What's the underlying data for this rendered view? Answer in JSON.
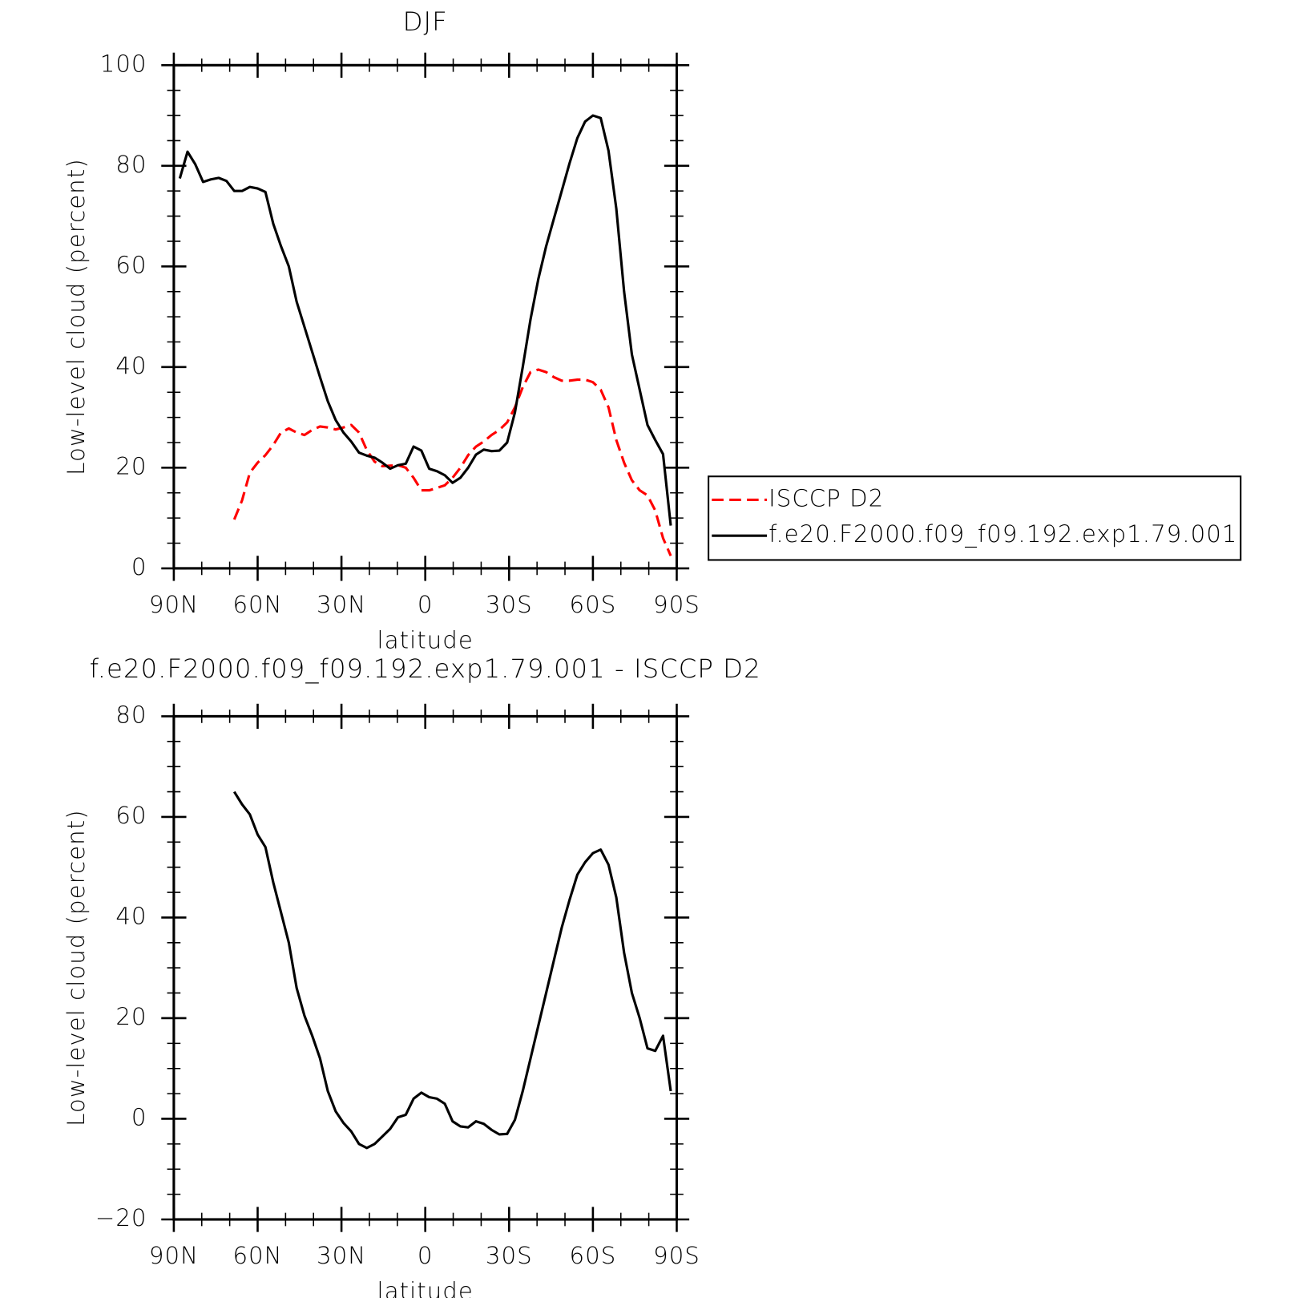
{
  "chart_data": [
    {
      "type": "line",
      "title": "DJF",
      "x_label": "latitude",
      "y_label": "Low-level cloud (percent)",
      "x": [
        87.86,
        85.1,
        82.31,
        79.53,
        76.74,
        73.95,
        71.16,
        68.37,
        65.58,
        62.79,
        60.0,
        57.21,
        54.42,
        51.63,
        48.84,
        46.04,
        43.25,
        40.46,
        37.67,
        34.88,
        32.09,
        29.3,
        26.51,
        23.72,
        20.93,
        18.14,
        15.35,
        12.56,
        9.77,
        6.98,
        4.19,
        1.4,
        -1.4,
        -4.19,
        -6.98,
        -9.77,
        -12.56,
        -15.35,
        -18.14,
        -20.93,
        -23.72,
        -26.51,
        -29.3,
        -32.09,
        -34.88,
        -37.67,
        -40.46,
        -43.25,
        -46.04,
        -48.84,
        -51.63,
        -54.42,
        -57.21,
        -60.0,
        -62.79,
        -65.58,
        -68.37,
        -71.16,
        -73.95,
        -76.74,
        -79.53,
        -82.31,
        -85.1,
        -87.86
      ],
      "xlim": [
        90,
        -90
      ],
      "xticks": [
        {
          "value": 90,
          "label": "90N"
        },
        {
          "value": 60,
          "label": "60N"
        },
        {
          "value": 30,
          "label": "30N"
        },
        0,
        {
          "value": -30,
          "label": "30S"
        },
        {
          "value": -60,
          "label": "60S"
        },
        {
          "value": -90,
          "label": "90S"
        }
      ],
      "ylim": [
        0,
        100
      ],
      "yticks": [
        0,
        20,
        40,
        60,
        80,
        100
      ],
      "legend": "right",
      "series": [
        {
          "name": "ISCCP D2",
          "color": "#ff0000",
          "line_style": "dashed",
          "values": [
            null,
            null,
            null,
            null,
            null,
            null,
            null,
            9.7,
            13.5,
            19.0,
            21.0,
            22.5,
            24.5,
            27.0,
            27.8,
            27.0,
            26.5,
            27.5,
            28.2,
            28.0,
            27.6,
            28.0,
            28.5,
            27.0,
            23.5,
            21.2,
            20.3,
            20.4,
            20.5,
            20.0,
            18.0,
            15.5,
            15.5,
            16.0,
            16.5,
            18.0,
            20.0,
            22.5,
            24.2,
            25.2,
            26.5,
            27.5,
            29.0,
            32.0,
            36.0,
            39.0,
            39.5,
            39.0,
            38.0,
            37.3,
            37.3,
            37.5,
            37.5,
            37.0,
            35.5,
            32.0,
            25.5,
            21.0,
            17.5,
            15.5,
            14.5,
            11.5,
            6.0,
            2.5
          ]
        },
        {
          "name": "f.e20.F2000.f09_f09.192.exp1.79.001",
          "color": "#000000",
          "line_style": "solid",
          "values": [
            77.5,
            82.8,
            80.3,
            76.8,
            77.3,
            77.6,
            77.0,
            75.0,
            75.0,
            75.8,
            75.5,
            74.8,
            68.5,
            64.0,
            60.0,
            53.0,
            48.0,
            43.0,
            38.0,
            33.2,
            29.5,
            27.0,
            25.2,
            23.0,
            22.4,
            22.0,
            21.0,
            19.8,
            20.5,
            20.8,
            24.2,
            23.4,
            19.8,
            19.3,
            18.5,
            17.0,
            18.0,
            20.0,
            22.6,
            23.6,
            23.3,
            23.4,
            25.0,
            31.0,
            40.0,
            49.5,
            57.5,
            64.0,
            69.5,
            75.0,
            80.5,
            85.5,
            88.8,
            90.0,
            89.5,
            83.0,
            71.5,
            55.0,
            42.5,
            35.5,
            28.5,
            25.5,
            22.7,
            8.5
          ]
        }
      ]
    },
    {
      "type": "line",
      "title": "f.e20.F2000.f09_f09.192.exp1.79.001 - ISCCP D2",
      "x_label": "latitude",
      "y_label": "Low-level cloud (percent)",
      "x": [
        87.86,
        85.1,
        82.31,
        79.53,
        76.74,
        73.95,
        71.16,
        68.37,
        65.58,
        62.79,
        60.0,
        57.21,
        54.42,
        51.63,
        48.84,
        46.04,
        43.25,
        40.46,
        37.67,
        34.88,
        32.09,
        29.3,
        26.51,
        23.72,
        20.93,
        18.14,
        15.35,
        12.56,
        9.77,
        6.98,
        4.19,
        1.4,
        -1.4,
        -4.19,
        -6.98,
        -9.77,
        -12.56,
        -15.35,
        -18.14,
        -20.93,
        -23.72,
        -26.51,
        -29.3,
        -32.09,
        -34.88,
        -37.67,
        -40.46,
        -43.25,
        -46.04,
        -48.84,
        -51.63,
        -54.42,
        -57.21,
        -60.0,
        -62.79,
        -65.58,
        -68.37,
        -71.16,
        -73.95,
        -76.74,
        -79.53,
        -82.31,
        -85.1,
        -87.86
      ],
      "xlim": [
        90,
        -90
      ],
      "xticks": [
        {
          "value": 90,
          "label": "90N"
        },
        {
          "value": 60,
          "label": "60N"
        },
        {
          "value": 30,
          "label": "30N"
        },
        0,
        {
          "value": -30,
          "label": "30S"
        },
        {
          "value": -60,
          "label": "60S"
        },
        {
          "value": -90,
          "label": "90S"
        }
      ],
      "ylim": [
        -20,
        80
      ],
      "yticks": [
        {
          "value": -20,
          "label": "−20"
        },
        0,
        20,
        40,
        60,
        80
      ],
      "series": [
        {
          "color": "#000000",
          "line_style": "solid",
          "values": [
            null,
            null,
            null,
            null,
            null,
            null,
            null,
            65.0,
            62.5,
            60.5,
            56.5,
            54.0,
            47.0,
            41.0,
            35.0,
            26.0,
            20.5,
            16.5,
            12.0,
            5.5,
            1.5,
            -0.8,
            -2.5,
            -5.0,
            -5.8,
            -5.0,
            -3.5,
            -2.0,
            0.3,
            0.8,
            4.0,
            5.2,
            4.3,
            4.0,
            3.0,
            -0.5,
            -1.5,
            -1.7,
            -0.5,
            -1.0,
            -2.2,
            -3.1,
            -3.0,
            -0.2,
            5.5,
            12.0,
            18.5,
            25.0,
            31.5,
            38.0,
            43.5,
            48.5,
            51.0,
            52.8,
            53.5,
            50.5,
            44.0,
            33.0,
            25.0,
            20.0,
            14.0,
            13.5,
            16.5,
            5.5
          ]
        }
      ]
    }
  ]
}
